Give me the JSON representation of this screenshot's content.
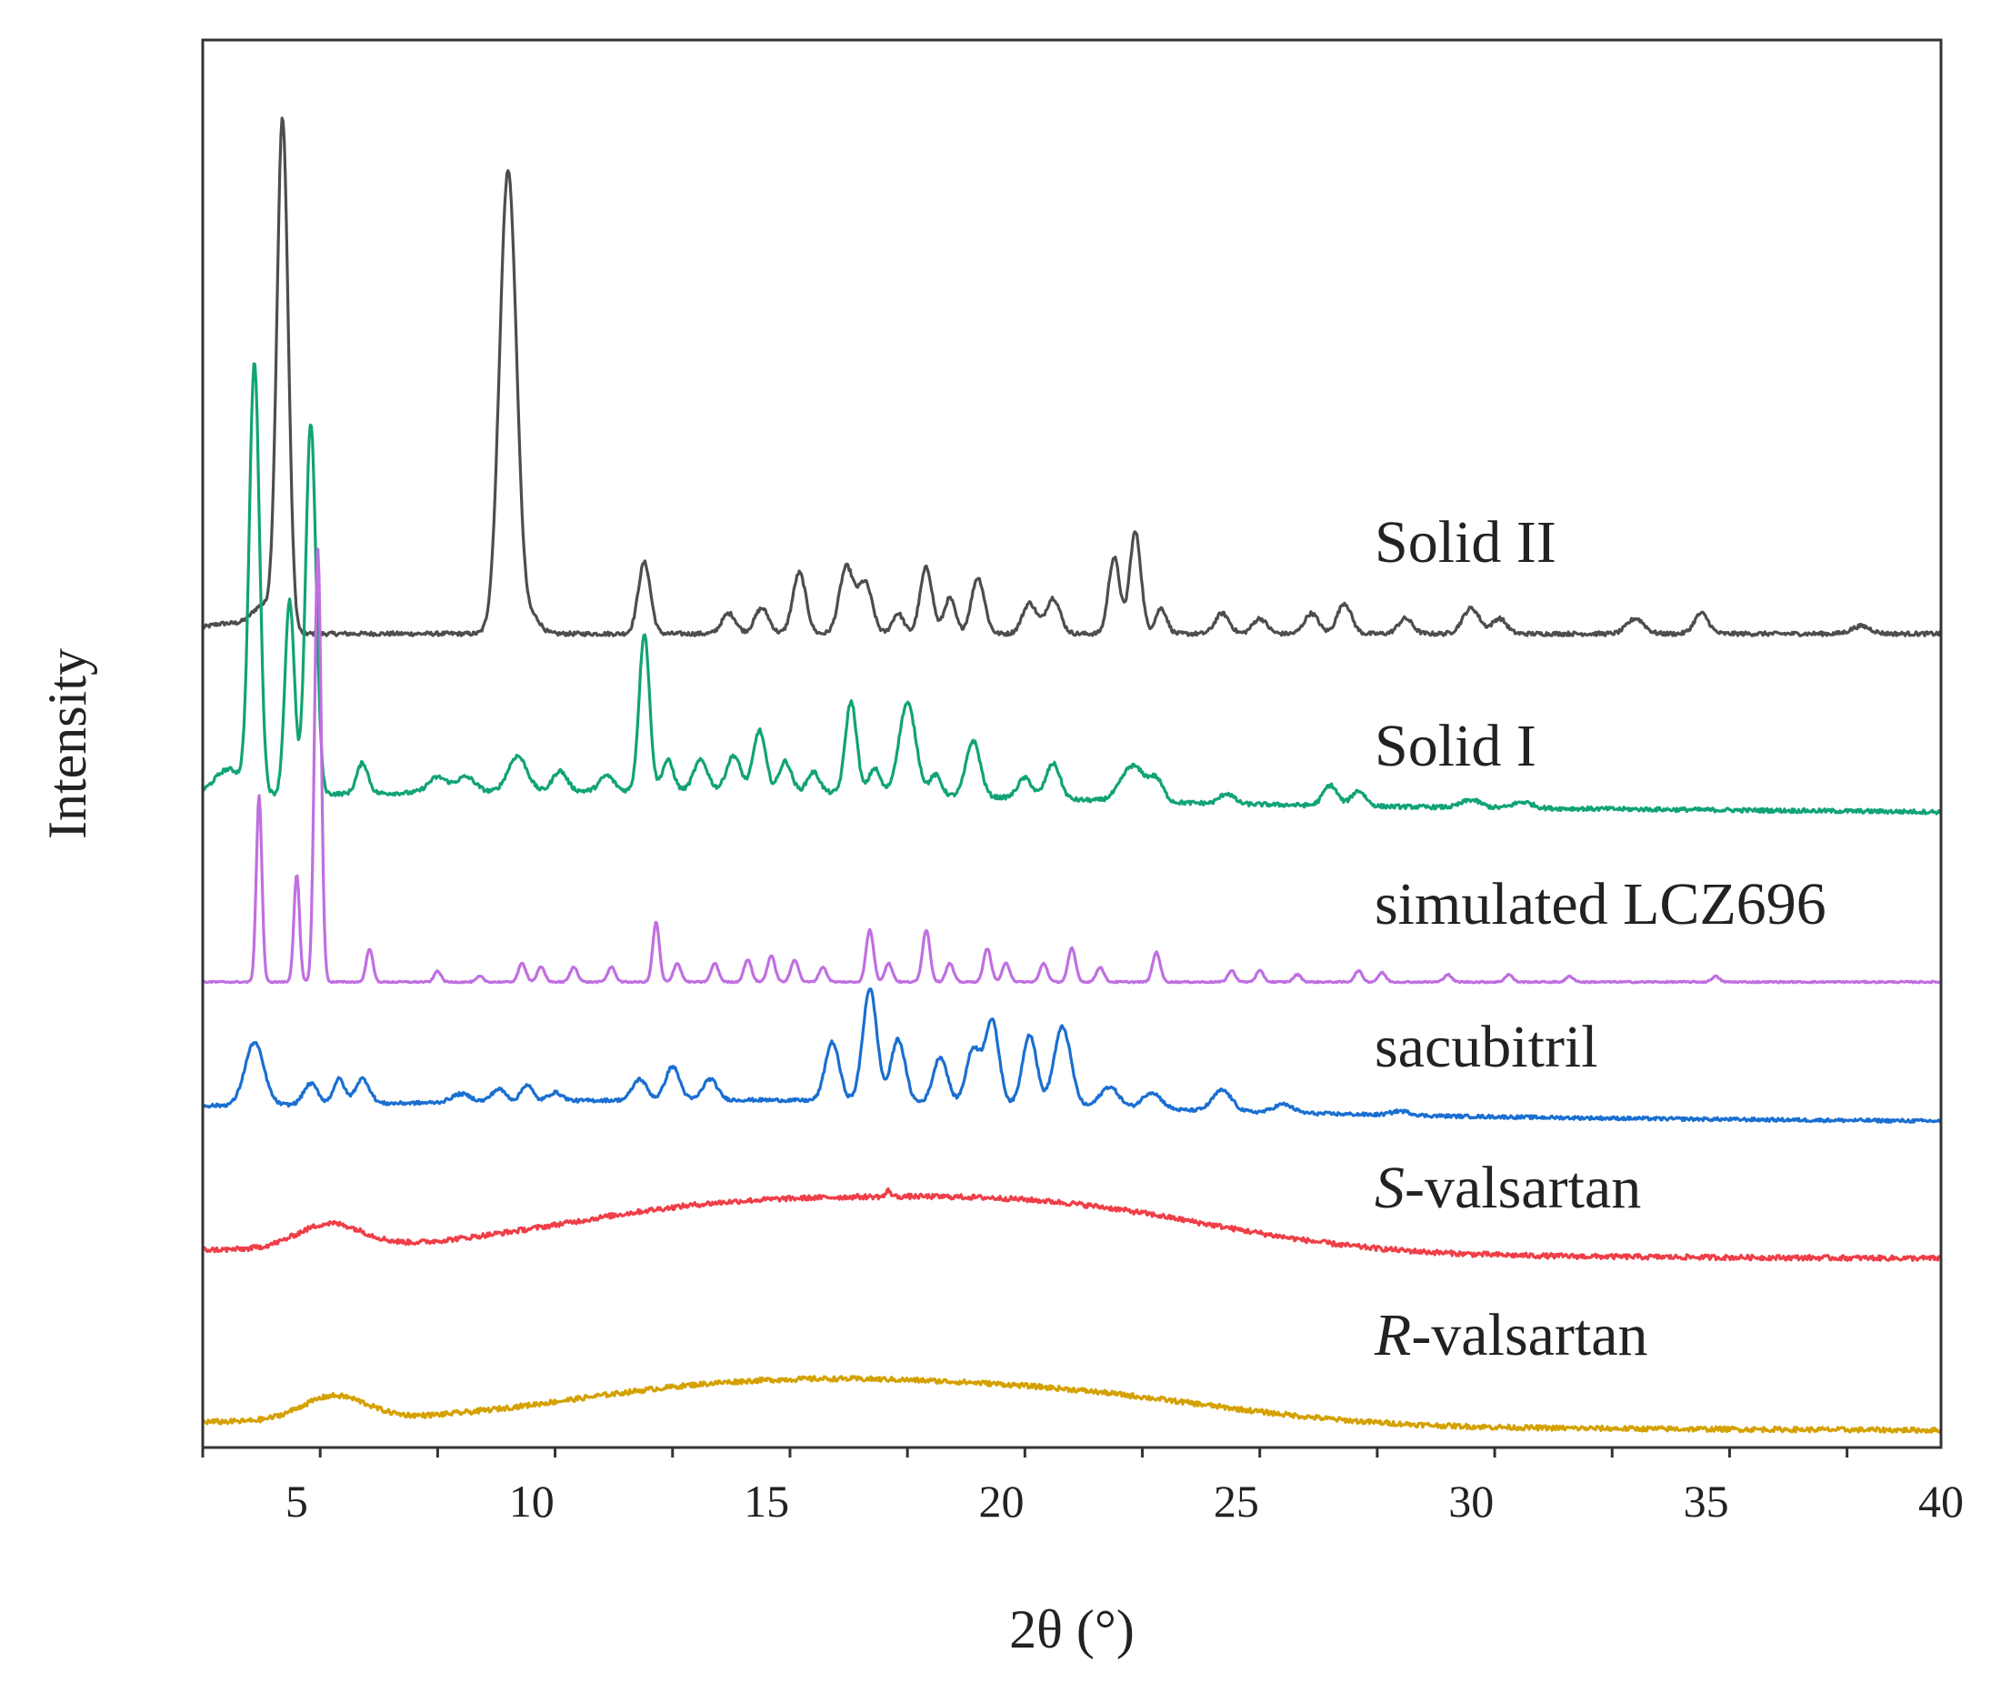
{
  "chart_data": {
    "type": "line",
    "title": "",
    "xlabel": "2θ (°)",
    "ylabel": "Intensity",
    "xlim": [
      3,
      40
    ],
    "xticks": [
      5,
      10,
      15,
      20,
      25,
      30,
      35,
      40
    ],
    "xtick_labels": [
      "5",
      "10",
      "15",
      "20",
      "25",
      "30",
      "35",
      "40"
    ],
    "y_ticks_shown": false,
    "grid": false,
    "plot_style": "stacked offset XRD patterns",
    "series": [
      {
        "name": "Solid II",
        "label_main": "Solid II",
        "label_italic": "",
        "color": "#4d4d4d",
        "peaks": [
          [
            3.5,
            0.02,
            0.5
          ],
          [
            4.3,
            0.05,
            0.25
          ],
          [
            4.7,
            1.0,
            0.12
          ],
          [
            9.5,
            0.91,
            0.18
          ],
          [
            10.05,
            0.03,
            0.15
          ],
          [
            12.4,
            0.14,
            0.13
          ],
          [
            14.2,
            0.04,
            0.15
          ],
          [
            14.9,
            0.05,
            0.15
          ],
          [
            15.7,
            0.12,
            0.14
          ],
          [
            16.7,
            0.13,
            0.15
          ],
          [
            17.1,
            0.1,
            0.15
          ],
          [
            17.8,
            0.04,
            0.12
          ],
          [
            18.4,
            0.13,
            0.13
          ],
          [
            18.9,
            0.07,
            0.12
          ],
          [
            19.5,
            0.11,
            0.14
          ],
          [
            20.6,
            0.06,
            0.15
          ],
          [
            21.1,
            0.07,
            0.15
          ],
          [
            22.4,
            0.15,
            0.12
          ],
          [
            22.85,
            0.2,
            0.12
          ],
          [
            23.4,
            0.05,
            0.12
          ],
          [
            24.7,
            0.04,
            0.15
          ],
          [
            25.5,
            0.03,
            0.15
          ],
          [
            26.6,
            0.04,
            0.15
          ],
          [
            27.3,
            0.06,
            0.15
          ],
          [
            28.6,
            0.03,
            0.15
          ],
          [
            30.0,
            0.05,
            0.18
          ],
          [
            30.6,
            0.03,
            0.15
          ],
          [
            33.5,
            0.03,
            0.18
          ],
          [
            34.9,
            0.04,
            0.15
          ],
          [
            38.3,
            0.015,
            0.2
          ]
        ],
        "baseline_start": 0.0,
        "baseline_end": 0.0,
        "hump": [],
        "noise_level": 0.004
      },
      {
        "name": "Solid I",
        "label_main": "Solid I",
        "label_italic": "",
        "color": "#11a377",
        "peaks": [
          [
            3.55,
            0.05,
            0.3
          ],
          [
            4.1,
            0.84,
            0.11
          ],
          [
            4.85,
            0.38,
            0.1
          ],
          [
            5.3,
            0.73,
            0.11
          ],
          [
            6.4,
            0.06,
            0.12
          ],
          [
            8.0,
            0.03,
            0.2
          ],
          [
            8.6,
            0.03,
            0.2
          ],
          [
            9.7,
            0.07,
            0.2
          ],
          [
            10.6,
            0.04,
            0.15
          ],
          [
            11.6,
            0.03,
            0.15
          ],
          [
            12.4,
            0.31,
            0.11
          ],
          [
            12.9,
            0.06,
            0.12
          ],
          [
            13.6,
            0.06,
            0.15
          ],
          [
            14.3,
            0.07,
            0.15
          ],
          [
            14.85,
            0.12,
            0.13
          ],
          [
            15.4,
            0.06,
            0.13
          ],
          [
            16.0,
            0.04,
            0.13
          ],
          [
            16.8,
            0.18,
            0.12
          ],
          [
            17.3,
            0.05,
            0.12
          ],
          [
            18.0,
            0.18,
            0.18
          ],
          [
            18.6,
            0.04,
            0.12
          ],
          [
            19.4,
            0.11,
            0.15
          ],
          [
            20.5,
            0.04,
            0.15
          ],
          [
            21.1,
            0.07,
            0.15
          ],
          [
            22.8,
            0.07,
            0.25
          ],
          [
            23.3,
            0.04,
            0.15
          ],
          [
            24.8,
            0.02,
            0.15
          ],
          [
            27.0,
            0.04,
            0.15
          ],
          [
            27.6,
            0.03,
            0.15
          ],
          [
            30.0,
            0.015,
            0.2
          ],
          [
            31.1,
            0.012,
            0.2
          ]
        ],
        "baseline_start": 0.03,
        "baseline_end": 0.0,
        "hump": [
          [
            14.0,
            0.02,
            6.0
          ]
        ],
        "noise_level": 0.004
      },
      {
        "name": "simulated LCZ696",
        "label_main": "simulated LCZ696",
        "label_italic": "",
        "color": "#bf6fe0",
        "peaks": [
          [
            4.2,
            0.5,
            0.06
          ],
          [
            5.0,
            0.29,
            0.06
          ],
          [
            5.45,
            1.16,
            0.07
          ],
          [
            6.55,
            0.09,
            0.07
          ],
          [
            8.0,
            0.03,
            0.07
          ],
          [
            8.9,
            0.015,
            0.07
          ],
          [
            9.8,
            0.05,
            0.08
          ],
          [
            10.2,
            0.04,
            0.08
          ],
          [
            10.9,
            0.04,
            0.08
          ],
          [
            11.7,
            0.04,
            0.08
          ],
          [
            12.65,
            0.16,
            0.07
          ],
          [
            13.1,
            0.05,
            0.08
          ],
          [
            13.9,
            0.05,
            0.08
          ],
          [
            14.6,
            0.06,
            0.08
          ],
          [
            15.1,
            0.07,
            0.08
          ],
          [
            15.6,
            0.06,
            0.08
          ],
          [
            16.2,
            0.04,
            0.08
          ],
          [
            17.2,
            0.14,
            0.08
          ],
          [
            17.6,
            0.05,
            0.08
          ],
          [
            18.4,
            0.14,
            0.08
          ],
          [
            18.9,
            0.05,
            0.08
          ],
          [
            19.7,
            0.09,
            0.08
          ],
          [
            20.1,
            0.05,
            0.08
          ],
          [
            20.9,
            0.05,
            0.08
          ],
          [
            21.5,
            0.09,
            0.08
          ],
          [
            22.1,
            0.04,
            0.08
          ],
          [
            23.3,
            0.08,
            0.08
          ],
          [
            24.9,
            0.03,
            0.08
          ],
          [
            25.5,
            0.03,
            0.08
          ],
          [
            26.3,
            0.02,
            0.08
          ],
          [
            27.6,
            0.03,
            0.08
          ],
          [
            28.1,
            0.025,
            0.08
          ],
          [
            29.5,
            0.02,
            0.08
          ],
          [
            30.8,
            0.02,
            0.08
          ],
          [
            32.1,
            0.015,
            0.08
          ],
          [
            35.2,
            0.015,
            0.08
          ]
        ],
        "baseline_start": 0.0,
        "baseline_end": 0.0,
        "hump": [],
        "noise_level": 0.002
      },
      {
        "name": "sacubitril",
        "label_main": "sacubitril",
        "label_italic": "",
        "color": "#1a6fd1",
        "peaks": [
          [
            4.1,
            0.15,
            0.2
          ],
          [
            5.3,
            0.05,
            0.15
          ],
          [
            5.9,
            0.06,
            0.12
          ],
          [
            6.4,
            0.06,
            0.15
          ],
          [
            8.5,
            0.02,
            0.2
          ],
          [
            9.3,
            0.03,
            0.15
          ],
          [
            9.9,
            0.04,
            0.12
          ],
          [
            10.5,
            0.02,
            0.15
          ],
          [
            12.3,
            0.05,
            0.15
          ],
          [
            13.0,
            0.08,
            0.15
          ],
          [
            13.8,
            0.05,
            0.15
          ],
          [
            16.4,
            0.14,
            0.15
          ],
          [
            17.2,
            0.27,
            0.15
          ],
          [
            17.8,
            0.15,
            0.15
          ],
          [
            18.7,
            0.11,
            0.15
          ],
          [
            19.4,
            0.13,
            0.15
          ],
          [
            19.8,
            0.2,
            0.15
          ],
          [
            20.6,
            0.17,
            0.15
          ],
          [
            21.3,
            0.19,
            0.18
          ],
          [
            22.3,
            0.05,
            0.2
          ],
          [
            23.2,
            0.04,
            0.2
          ],
          [
            24.7,
            0.05,
            0.2
          ],
          [
            26.0,
            0.02,
            0.2
          ],
          [
            28.5,
            0.01,
            0.2
          ]
        ],
        "baseline_start": 0.03,
        "baseline_end": 0.0,
        "hump": [
          [
            15.0,
            0.03,
            7.0
          ]
        ],
        "noise_level": 0.004
      },
      {
        "name": "S-valsartan",
        "label_main": "-valsartan",
        "label_italic": "S",
        "color": "#ef3e47",
        "peaks": [
          [
            5.7,
            0.06,
            0.7
          ],
          [
            17.6,
            0.015,
            0.05
          ]
        ],
        "baseline_start": 0.02,
        "baseline_end": 0.0,
        "hump": [
          [
            13.8,
            0.1,
            3.5
          ],
          [
            21.5,
            0.1,
            3.5
          ],
          [
            18.0,
            0.03,
            3.0
          ]
        ],
        "noise_level": 0.006
      },
      {
        "name": "R-valsartan",
        "label_main": "-valsartan",
        "label_italic": "R",
        "color": "#d4a100",
        "peaks": [
          [
            5.8,
            0.06,
            0.7
          ]
        ],
        "baseline_start": 0.02,
        "baseline_end": 0.0,
        "hump": [
          [
            13.8,
            0.08,
            3.5
          ],
          [
            21.5,
            0.07,
            3.5
          ],
          [
            17.5,
            0.03,
            3.0
          ]
        ],
        "noise_level": 0.006
      }
    ]
  }
}
